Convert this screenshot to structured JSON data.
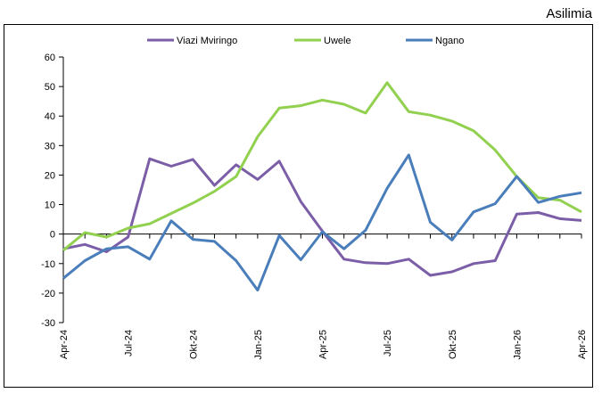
{
  "chart_data": {
    "type": "line",
    "unit_label": "Asilimia",
    "categories": [
      "Apr-24",
      null,
      null,
      "Jul-24",
      null,
      null,
      "Okt-24",
      null,
      null,
      "Jan-25",
      null,
      null,
      "Apr-25",
      null,
      null,
      "Jul-25",
      null,
      null,
      "Okt-25",
      null,
      null,
      "Jan-26",
      null,
      null,
      "Apr-26"
    ],
    "series": [
      {
        "name": "Viazi Mviringo",
        "color": "#7b5ea7",
        "values": [
          -5,
          -3.5,
          -6,
          -1,
          25.5,
          23,
          25.3,
          16.5,
          23.5,
          18.5,
          24.7,
          11,
          1,
          -8.5,
          -9.7,
          -10,
          -8.5,
          -14,
          -12.8,
          -10,
          -9,
          6.8,
          7.3,
          5.2,
          4.6
        ]
      },
      {
        "name": "Uwele",
        "color": "#92d050",
        "values": [
          -5.5,
          0.5,
          -1,
          2,
          3.5,
          7,
          10.5,
          14.5,
          19.5,
          33,
          42.7,
          43.5,
          45.4,
          44,
          41,
          51.3,
          41.5,
          40.3,
          38.3,
          35,
          28.5,
          19.5,
          12.3,
          11.5,
          7.5
        ]
      },
      {
        "name": "Ngano",
        "color": "#4a7ebb",
        "values": [
          -15,
          -9,
          -5,
          -4.3,
          -8.5,
          4.5,
          -1.8,
          -2.5,
          -9,
          -19,
          -0.5,
          -8.7,
          0.8,
          -5,
          1.3,
          15.5,
          26.8,
          4,
          -2,
          7.5,
          10.3,
          19.5,
          10.7,
          12.8,
          14
        ]
      }
    ],
    "ylim": [
      -30,
      60
    ],
    "yticks": [
      -30,
      -20,
      -10,
      0,
      10,
      20,
      30,
      40,
      50,
      60
    ],
    "grid": false
  }
}
